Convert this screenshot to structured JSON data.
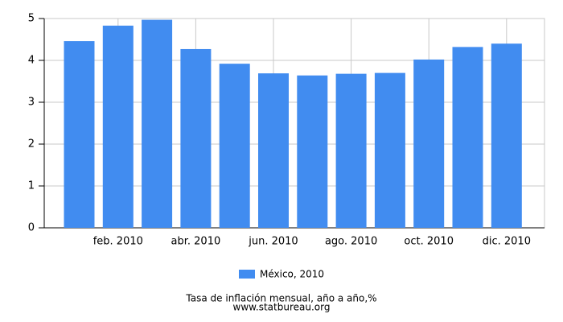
{
  "chart_data": {
    "type": "bar",
    "title": "Tasa de inflación mensual, año a año,%",
    "subtitle": "www.statbureau.org",
    "categories": [
      null,
      "feb. 2010",
      null,
      "abr. 2010",
      null,
      "jun. 2010",
      null,
      "ago. 2010",
      null,
      "oct. 2010",
      null,
      "dic. 2010"
    ],
    "series": [
      {
        "name": "México, 2010",
        "color": "#418cf0",
        "values": [
          4.46,
          4.83,
          4.97,
          4.27,
          3.92,
          3.69,
          3.64,
          3.68,
          3.7,
          4.02,
          4.32,
          4.4
        ]
      }
    ],
    "ylim": [
      0,
      5
    ],
    "yticks": [
      0,
      1,
      2,
      3,
      4,
      5
    ],
    "grid": true
  }
}
